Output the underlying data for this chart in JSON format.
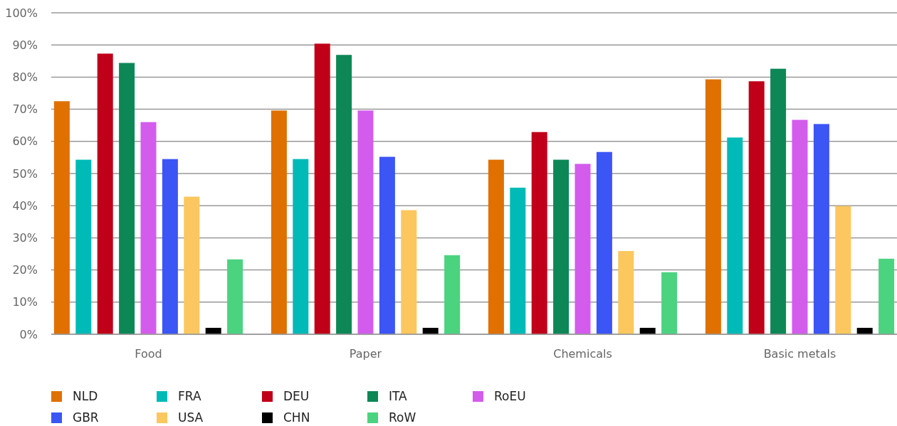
{
  "chart_data": {
    "type": "bar",
    "categories": [
      "Food",
      "Paper",
      "Chemicals",
      "Basic metals"
    ],
    "series": [
      {
        "name": "NLD",
        "color": "#e07000",
        "values": [
          72.5,
          69.6,
          54.3,
          79.3
        ]
      },
      {
        "name": "FRA",
        "color": "#00bab8",
        "values": [
          54.3,
          54.5,
          45.6,
          61.2
        ]
      },
      {
        "name": "DEU",
        "color": "#c00018",
        "values": [
          87.3,
          90.4,
          62.9,
          78.7
        ]
      },
      {
        "name": "ITA",
        "color": "#0d8756",
        "values": [
          84.4,
          86.9,
          54.3,
          82.6
        ]
      },
      {
        "name": "RoEU",
        "color": "#d35ced",
        "values": [
          66.0,
          69.6,
          53.0,
          66.7
        ]
      },
      {
        "name": "GBR",
        "color": "#3c55f5",
        "values": [
          54.5,
          55.2,
          56.7,
          65.4
        ]
      },
      {
        "name": "USA",
        "color": "#fbc75e",
        "values": [
          42.8,
          38.6,
          25.9,
          39.9
        ]
      },
      {
        "name": "CHN",
        "color": "#000000",
        "values": [
          2.0,
          2.0,
          2.0,
          2.0
        ]
      },
      {
        "name": "RoW",
        "color": "#4bd380",
        "values": [
          23.3,
          24.6,
          19.3,
          23.5
        ]
      }
    ],
    "ylim": [
      0,
      100
    ],
    "yticks": [
      {
        "value": 0,
        "label": "0%"
      },
      {
        "value": 10,
        "label": "10%"
      },
      {
        "value": 20,
        "label": "20%"
      },
      {
        "value": 30,
        "label": "30%"
      },
      {
        "value": 40,
        "label": "40%"
      },
      {
        "value": 50,
        "label": "50%"
      },
      {
        "value": 60,
        "label": "60%"
      },
      {
        "value": 70,
        "label": "70%"
      },
      {
        "value": 80,
        "label": "80%"
      },
      {
        "value": 90,
        "label": "90%"
      },
      {
        "value": 100,
        "label": "100%"
      }
    ],
    "grid": "y",
    "legend": "bottom"
  }
}
